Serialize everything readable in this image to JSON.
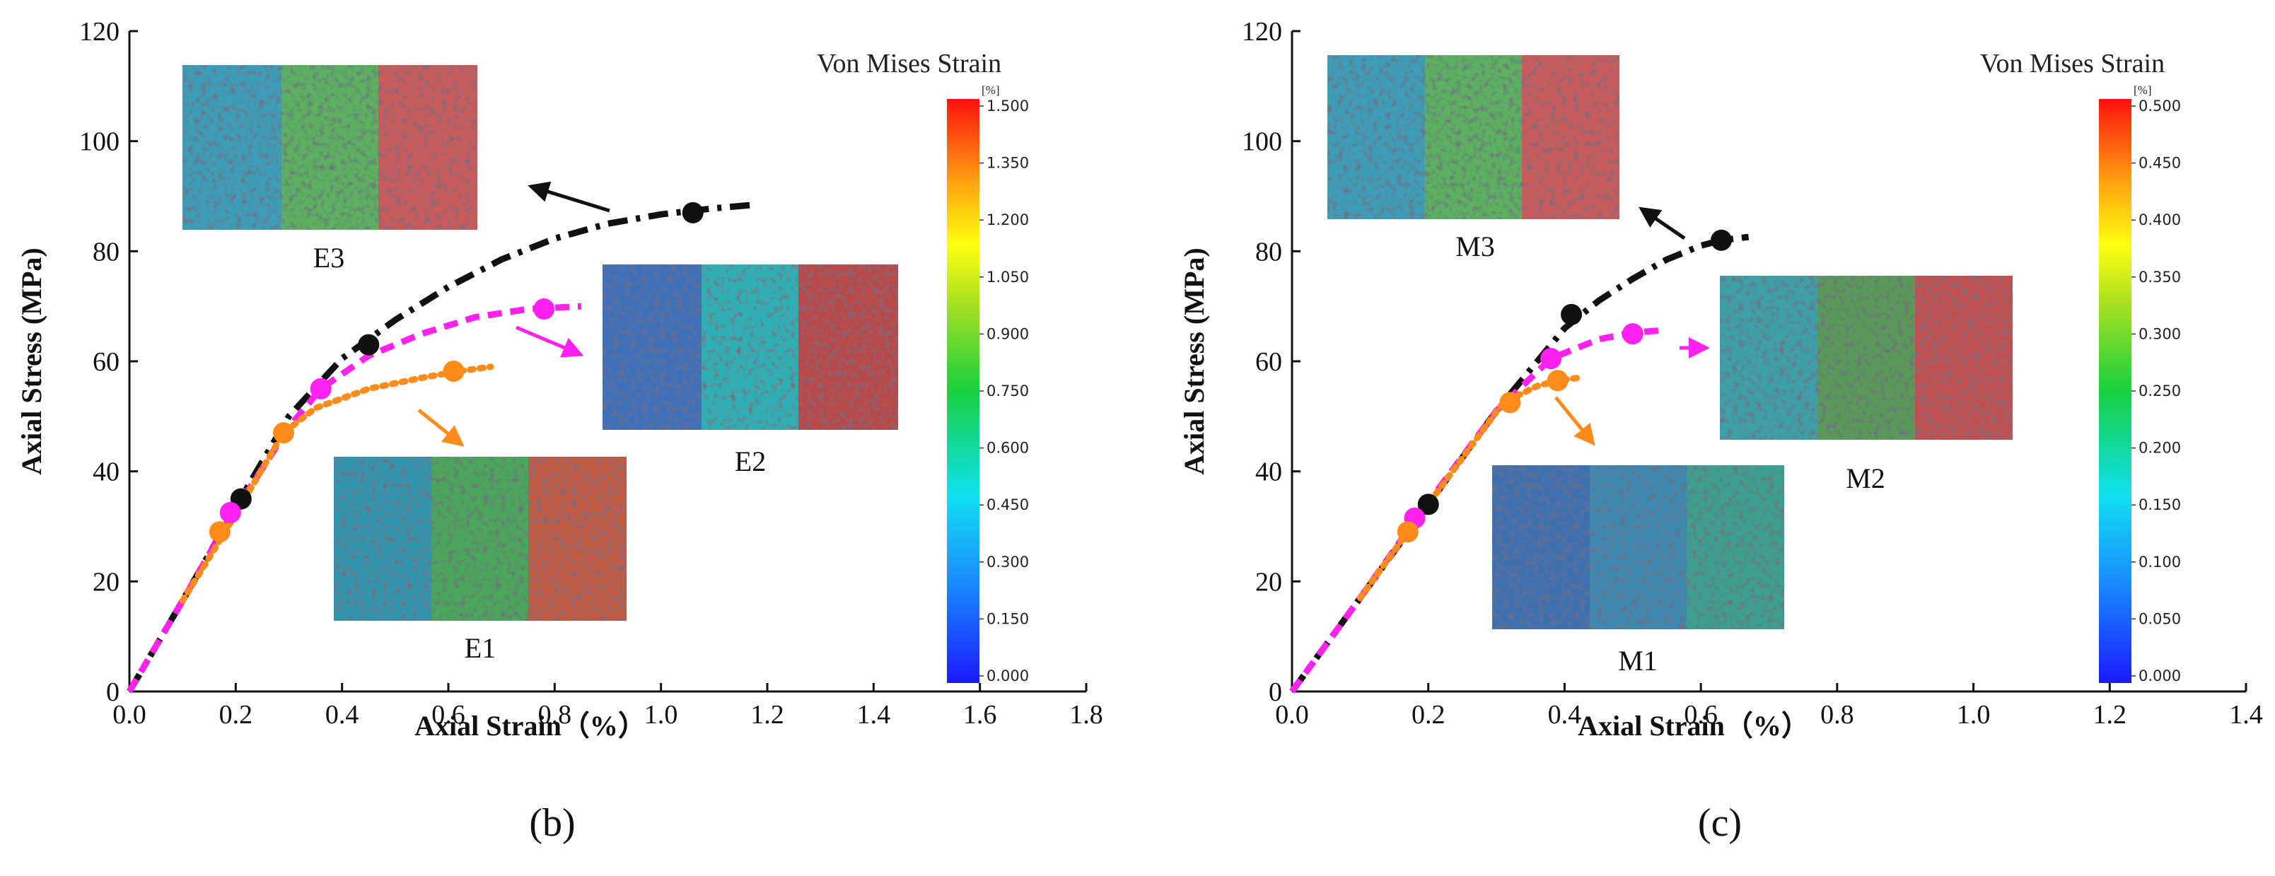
{
  "chart_data": [
    {
      "type": "line",
      "panel_label": "(b)",
      "xlabel": "Axial Strain（%）",
      "ylabel": "Axial Stress (MPa)",
      "xlim": [
        0,
        1.8
      ],
      "ylim": [
        0,
        120
      ],
      "xticks": [
        "0.0",
        "0.2",
        "0.4",
        "0.6",
        "0.8",
        "1.0",
        "1.2",
        "1.4",
        "1.6",
        "1.8"
      ],
      "xtick_values": [
        0,
        0.2,
        0.4,
        0.6,
        0.8,
        1.0,
        1.2,
        1.4,
        1.6,
        1.8
      ],
      "yticks": [
        "0",
        "20",
        "40",
        "60",
        "80",
        "100",
        "120"
      ],
      "ytick_values": [
        0,
        20,
        40,
        60,
        80,
        100,
        120
      ],
      "series": [
        {
          "name": "E3",
          "color": "#111111",
          "dash": "dashdot",
          "curve": [
            [
              0,
              0
            ],
            [
              0.1,
              16.5
            ],
            [
              0.2,
              33.5
            ],
            [
              0.3,
              50
            ],
            [
              0.4,
              60.5
            ],
            [
              0.5,
              67.5
            ],
            [
              0.6,
              73.5
            ],
            [
              0.7,
              78.5
            ],
            [
              0.8,
              82.3
            ],
            [
              0.9,
              85
            ],
            [
              1.0,
              86.7
            ],
            [
              1.1,
              87.8
            ],
            [
              1.17,
              88.4
            ]
          ],
          "markers": [
            [
              0.21,
              35
            ],
            [
              0.45,
              63
            ],
            [
              1.06,
              87
            ]
          ]
        },
        {
          "name": "E2",
          "color": "#ff22ee",
          "dash": "dashed",
          "curve": [
            [
              0,
              0
            ],
            [
              0.1,
              16.5
            ],
            [
              0.18,
              30
            ],
            [
              0.3,
              48
            ],
            [
              0.36,
              55
            ],
            [
              0.45,
              61
            ],
            [
              0.55,
              65
            ],
            [
              0.65,
              68
            ],
            [
              0.75,
              69.5
            ],
            [
              0.85,
              70
            ]
          ],
          "markers": [
            [
              0.19,
              32.5
            ],
            [
              0.36,
              55
            ],
            [
              0.78,
              69.5
            ]
          ]
        },
        {
          "name": "E1",
          "color": "#ff8c1a",
          "dash": "dotted",
          "curve": [
            [
              0.1,
              16.5
            ],
            [
              0.18,
              29
            ],
            [
              0.29,
              47
            ],
            [
              0.35,
              51.5
            ],
            [
              0.45,
              55
            ],
            [
              0.55,
              57
            ],
            [
              0.62,
              58.2
            ],
            [
              0.68,
              59
            ]
          ],
          "markers": [
            [
              0.17,
              29
            ],
            [
              0.29,
              47
            ],
            [
              0.61,
              58.2
            ]
          ]
        }
      ],
      "insets": [
        {
          "label": "E3",
          "arrow_color": "#111111"
        },
        {
          "label": "E2",
          "arrow_color": "#ff22ee"
        },
        {
          "label": "E1",
          "arrow_color": "#ff8c1a"
        }
      ],
      "colorbar": {
        "title": "Von Mises Strain",
        "unit": "[%]",
        "ticks": [
          "1.500",
          "1.350",
          "1.200",
          "1.050",
          "0.900",
          "0.750",
          "0.600",
          "0.450",
          "0.300",
          "0.150",
          "0.000"
        ]
      }
    },
    {
      "type": "line",
      "panel_label": "(c)",
      "xlabel": "Axial Strain（%）",
      "ylabel": "Axial Stress (MPa)",
      "xlim": [
        0,
        1.4
      ],
      "ylim": [
        0,
        120
      ],
      "xticks": [
        "0.0",
        "0.2",
        "0.4",
        "0.6",
        "0.8",
        "1.0",
        "1.2",
        "1.4"
      ],
      "xtick_values": [
        0,
        0.2,
        0.4,
        0.6,
        0.8,
        1.0,
        1.2,
        1.4
      ],
      "yticks": [
        "0",
        "20",
        "40",
        "60",
        "80",
        "100",
        "120"
      ],
      "ytick_values": [
        0,
        20,
        40,
        60,
        80,
        100,
        120
      ],
      "series": [
        {
          "name": "M3",
          "color": "#111111",
          "dash": "dashdot",
          "curve": [
            [
              0,
              0
            ],
            [
              0.1,
              17
            ],
            [
              0.2,
              34
            ],
            [
              0.3,
              51
            ],
            [
              0.4,
              66
            ],
            [
              0.45,
              71
            ],
            [
              0.5,
              75
            ],
            [
              0.55,
              78.5
            ],
            [
              0.6,
              81
            ],
            [
              0.63,
              82
            ],
            [
              0.67,
              82.6
            ]
          ],
          "markers": [
            [
              0.2,
              34
            ],
            [
              0.41,
              68.5
            ],
            [
              0.63,
              82
            ]
          ]
        },
        {
          "name": "M2",
          "color": "#ff22ee",
          "dash": "dashed",
          "curve": [
            [
              0,
              0
            ],
            [
              0.1,
              17
            ],
            [
              0.18,
              31
            ],
            [
              0.3,
              51
            ],
            [
              0.38,
              60.5
            ],
            [
              0.45,
              64
            ],
            [
              0.5,
              65.2
            ],
            [
              0.54,
              65.6
            ]
          ],
          "markers": [
            [
              0.18,
              31.5
            ],
            [
              0.38,
              60.5
            ],
            [
              0.5,
              65
            ]
          ]
        },
        {
          "name": "M1",
          "color": "#ff8c1a",
          "dash": "dotted",
          "curve": [
            [
              0.1,
              17
            ],
            [
              0.17,
              29
            ],
            [
              0.31,
              52.5
            ],
            [
              0.36,
              55.5
            ],
            [
              0.39,
              56.5
            ],
            [
              0.42,
              57
            ]
          ],
          "markers": [
            [
              0.17,
              29
            ],
            [
              0.32,
              52.5
            ],
            [
              0.39,
              56.5
            ]
          ]
        }
      ],
      "insets": [
        {
          "label": "M3",
          "arrow_color": "#111111"
        },
        {
          "label": "M2",
          "arrow_color": "#ff22ee"
        },
        {
          "label": "M1",
          "arrow_color": "#ff8c1a"
        }
      ],
      "colorbar": {
        "title": "Von Mises Strain",
        "unit": "[%]",
        "ticks": [
          "0.500",
          "0.450",
          "0.400",
          "0.350",
          "0.300",
          "0.250",
          "0.200",
          "0.150",
          "0.100",
          "0.050",
          "0.000"
        ]
      }
    }
  ]
}
